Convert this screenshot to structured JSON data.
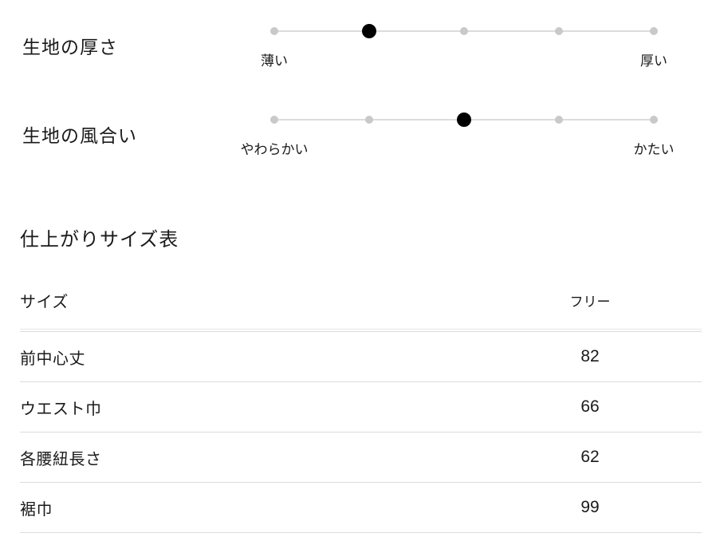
{
  "fabric_attributes": [
    {
      "label": "生地の厚さ",
      "min_label": "薄い",
      "max_label": "厚い",
      "levels": 5,
      "selected_level": 2
    },
    {
      "label": "生地の風合い",
      "min_label": "やわらかい",
      "max_label": "かたい",
      "levels": 5,
      "selected_level": 3
    }
  ],
  "size_section": {
    "title": "仕上がりサイズ表",
    "table": {
      "columns": [
        "サイズ",
        "フリー"
      ],
      "rows": [
        {
          "label": "前中心丈",
          "value": "82"
        },
        {
          "label": "ウエスト巾",
          "value": "66"
        },
        {
          "label": "各腰紐長さ",
          "value": "62"
        },
        {
          "label": "裾巾",
          "value": "99"
        }
      ]
    }
  },
  "colors": {
    "text": "#1a1a1a",
    "dot_inactive": "#c9c9c9",
    "dot_active": "#000000",
    "slider_track": "#dcdcdc",
    "divider": "#dcdcdc"
  }
}
